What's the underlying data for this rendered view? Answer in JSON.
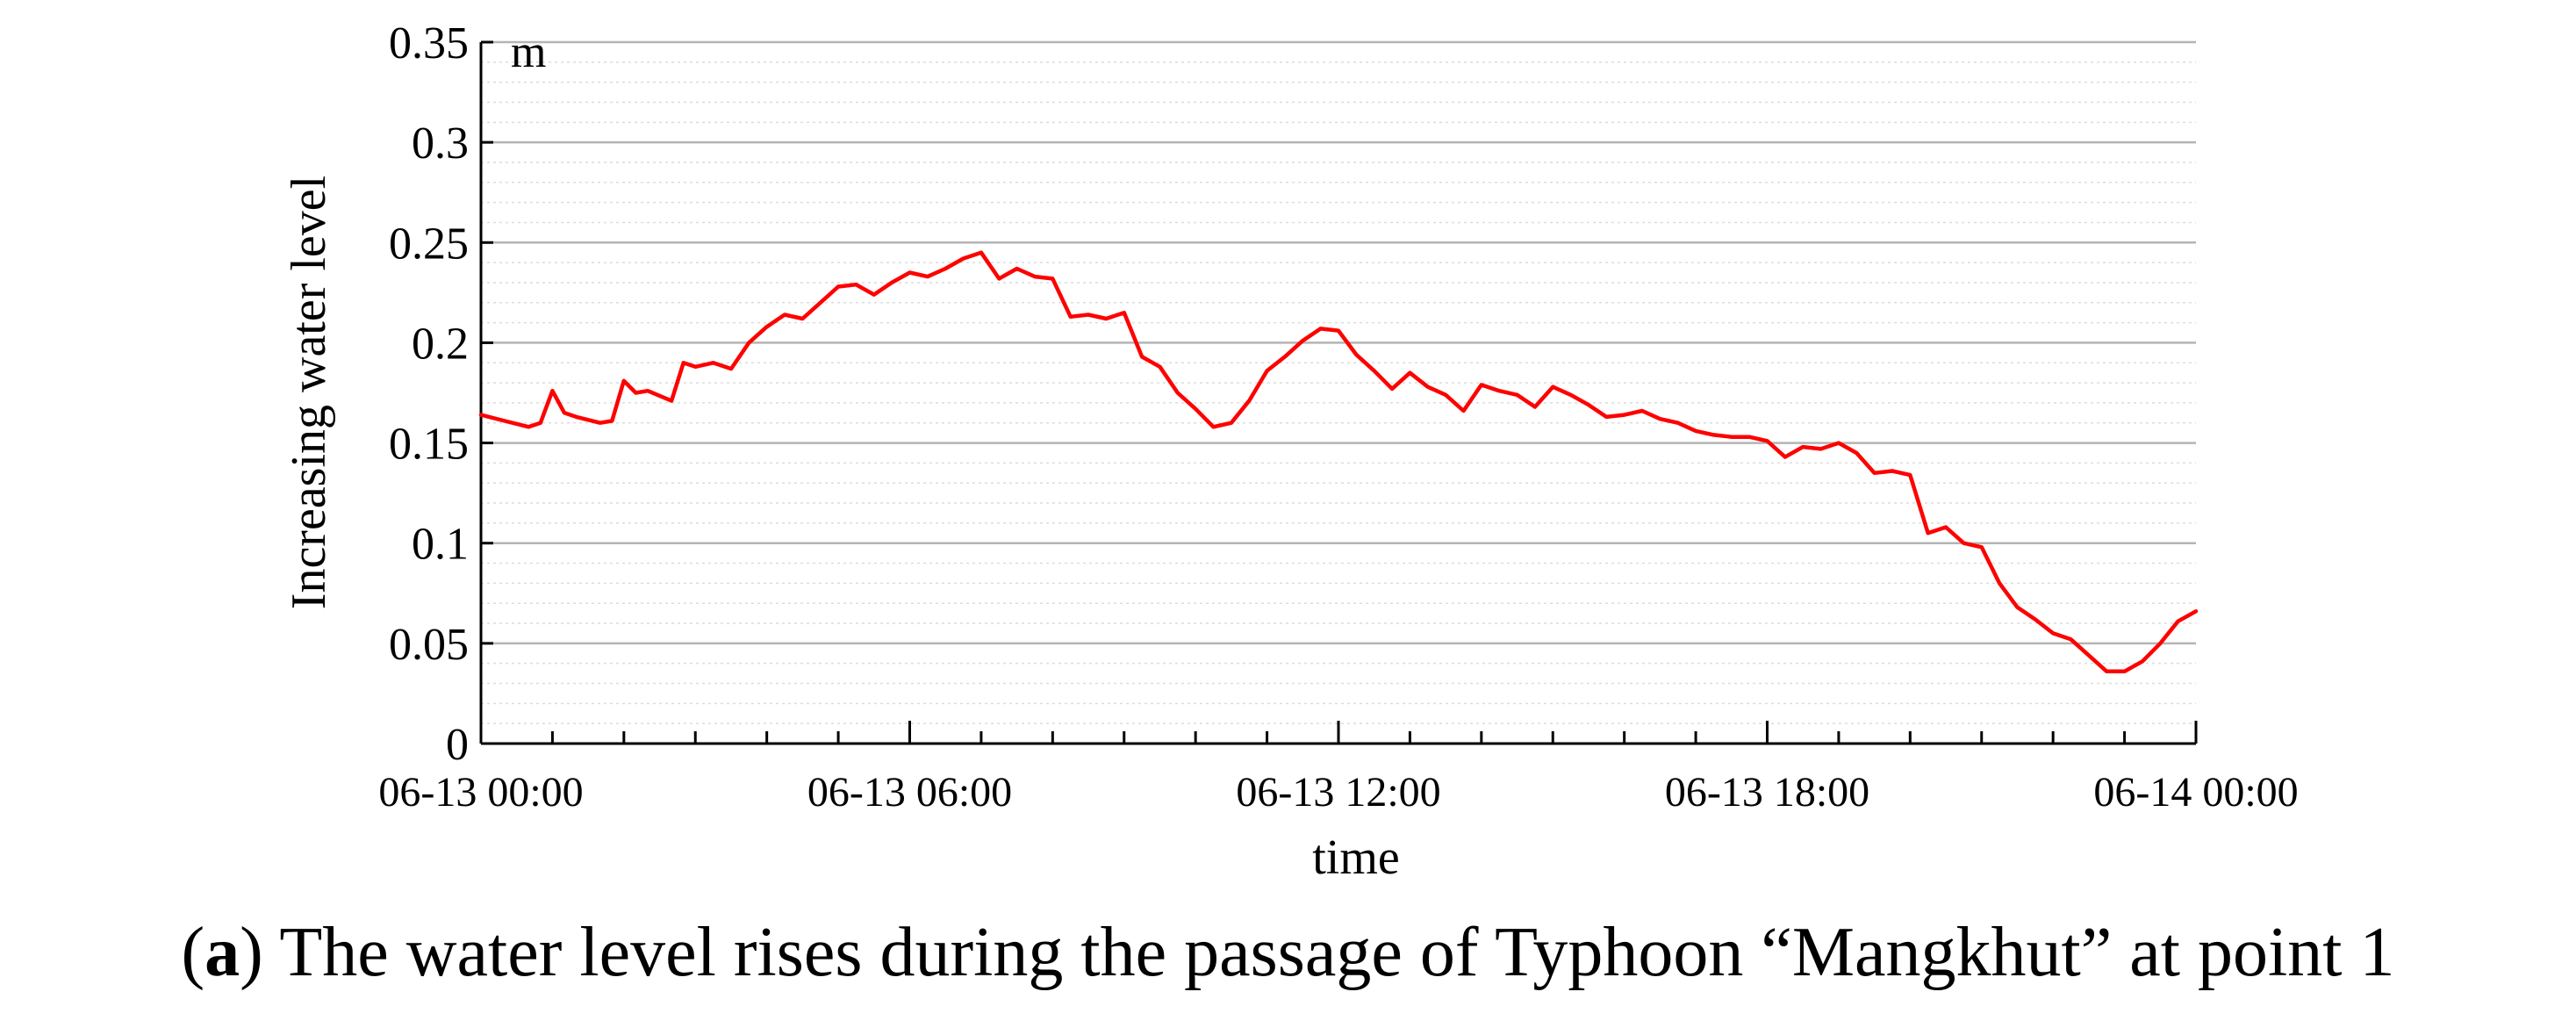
{
  "chart_data": {
    "type": "line",
    "unit_label": "m",
    "xlabel": "time",
    "ylabel": "Increasing water level",
    "ylim": [
      0,
      0.35
    ],
    "yticks": [
      "0",
      "0.05",
      "0.1",
      "0.15",
      "0.2",
      "0.25",
      "0.3",
      "0.35"
    ],
    "xlim": [
      "06-13 00:00",
      "06-14 00:00"
    ],
    "xticks": [
      "06-13 00:00",
      "06-13 06:00",
      "06-13 12:00",
      "06-13 18:00",
      "06-14 00:00"
    ],
    "grid": true,
    "line_color": "#ff0000",
    "series": [
      {
        "x": [
          "06-13 00:00",
          "06-13 00:20",
          "06-13 00:40",
          "06-13 00:50",
          "06-13 01:00",
          "06-13 01:10",
          "06-13 01:20",
          "06-13 01:40",
          "06-13 01:50",
          "06-13 02:00",
          "06-13 02:10",
          "06-13 02:20",
          "06-13 02:40",
          "06-13 02:50",
          "06-13 03:00",
          "06-13 03:15",
          "06-13 03:30",
          "06-13 03:45",
          "06-13 04:00",
          "06-13 04:15",
          "06-13 04:30",
          "06-13 04:45",
          "06-13 05:00",
          "06-13 05:15",
          "06-13 05:30",
          "06-13 05:45",
          "06-13 06:00",
          "06-13 06:15",
          "06-13 06:30",
          "06-13 06:45",
          "06-13 07:00",
          "06-13 07:15",
          "06-13 07:30",
          "06-13 07:45",
          "06-13 08:00",
          "06-13 08:15",
          "06-13 08:30",
          "06-13 08:45",
          "06-13 09:00",
          "06-13 09:15",
          "06-13 09:30",
          "06-13 09:45",
          "06-13 10:00",
          "06-13 10:15",
          "06-13 10:30",
          "06-13 10:45",
          "06-13 11:00",
          "06-13 11:15",
          "06-13 11:30",
          "06-13 11:45",
          "06-13 12:00",
          "06-13 12:15",
          "06-13 12:30",
          "06-13 12:45",
          "06-13 13:00",
          "06-13 13:15",
          "06-13 13:30",
          "06-13 13:45",
          "06-13 14:00",
          "06-13 14:15",
          "06-13 14:30",
          "06-13 14:45",
          "06-13 15:00",
          "06-13 15:15",
          "06-13 15:30",
          "06-13 15:45",
          "06-13 16:00",
          "06-13 16:15",
          "06-13 16:30",
          "06-13 16:45",
          "06-13 17:00",
          "06-13 17:15",
          "06-13 17:30",
          "06-13 17:45",
          "06-13 18:00",
          "06-13 18:15",
          "06-13 18:30",
          "06-13 18:45",
          "06-13 19:00",
          "06-13 19:15",
          "06-13 19:30",
          "06-13 19:45",
          "06-13 20:00",
          "06-13 20:15",
          "06-13 20:30",
          "06-13 20:45",
          "06-13 21:00",
          "06-13 21:15",
          "06-13 21:30",
          "06-13 21:45",
          "06-13 22:00",
          "06-13 22:15",
          "06-13 22:30",
          "06-13 22:45",
          "06-13 23:00",
          "06-13 23:15",
          "06-13 23:30",
          "06-13 23:45",
          "06-14 00:00"
        ],
        "y": [
          0.164,
          0.161,
          0.158,
          0.16,
          0.176,
          0.165,
          0.163,
          0.16,
          0.161,
          0.181,
          0.175,
          0.176,
          0.171,
          0.19,
          0.188,
          0.19,
          0.187,
          0.2,
          0.208,
          0.214,
          0.212,
          0.22,
          0.228,
          0.229,
          0.224,
          0.23,
          0.235,
          0.233,
          0.237,
          0.242,
          0.245,
          0.232,
          0.237,
          0.233,
          0.232,
          0.213,
          0.214,
          0.212,
          0.215,
          0.193,
          0.188,
          0.175,
          0.167,
          0.158,
          0.16,
          0.171,
          0.186,
          0.193,
          0.201,
          0.207,
          0.206,
          0.194,
          0.186,
          0.177,
          0.185,
          0.178,
          0.174,
          0.166,
          0.179,
          0.176,
          0.174,
          0.168,
          0.178,
          0.174,
          0.169,
          0.163,
          0.164,
          0.166,
          0.162,
          0.16,
          0.156,
          0.154,
          0.153,
          0.153,
          0.151,
          0.143,
          0.148,
          0.147,
          0.15,
          0.145,
          0.135,
          0.136,
          0.134,
          0.105,
          0.108,
          0.1,
          0.098,
          0.08,
          0.068,
          0.062,
          0.055,
          0.052,
          0.044,
          0.036,
          0.036,
          0.041,
          0.05,
          0.061,
          0.066
        ]
      }
    ]
  },
  "caption": {
    "label": "a",
    "text": "The water level rises during the passage of Typhoon “Mangkhut” at point 1"
  }
}
